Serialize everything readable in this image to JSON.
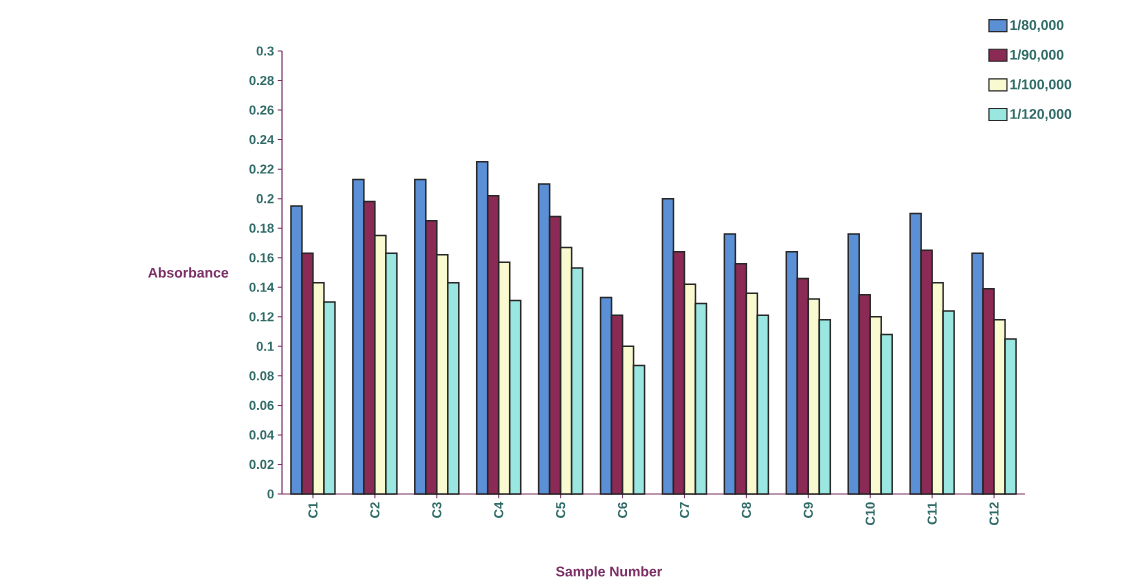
{
  "chart_data": {
    "type": "bar",
    "xlabel": "Sample Number",
    "ylabel": "Absorbance",
    "categories": [
      "C1",
      "C2",
      "C3",
      "C4",
      "C5",
      "C6",
      "C7",
      "C8",
      "C9",
      "C10",
      "C11",
      "C12"
    ],
    "series": [
      {
        "name": "1/80,000",
        "color": "#5b8fd6",
        "values": [
          0.195,
          0.213,
          0.213,
          0.225,
          0.21,
          0.133,
          0.2,
          0.176,
          0.164,
          0.176,
          0.19,
          0.163
        ]
      },
      {
        "name": "1/90,000",
        "color": "#8b2a55",
        "values": [
          0.163,
          0.198,
          0.185,
          0.202,
          0.188,
          0.121,
          0.164,
          0.156,
          0.146,
          0.135,
          0.165,
          0.139
        ]
      },
      {
        "name": "1/100,000",
        "color": "#fafad0",
        "values": [
          0.143,
          0.175,
          0.162,
          0.157,
          0.167,
          0.1,
          0.142,
          0.136,
          0.132,
          0.12,
          0.143,
          0.118
        ]
      },
      {
        "name": "1/120,000",
        "color": "#9ae6e0",
        "values": [
          0.13,
          0.163,
          0.143,
          0.131,
          0.153,
          0.087,
          0.129,
          0.121,
          0.118,
          0.108,
          0.124,
          0.105
        ]
      }
    ],
    "ylim": [
      0,
      0.3
    ],
    "yticks": [
      0,
      0.02,
      0.04,
      0.06,
      0.08,
      0.1,
      0.12,
      0.14,
      0.16,
      0.18,
      0.2,
      0.22,
      0.24,
      0.26,
      0.28,
      0.3
    ],
    "grid": false,
    "legend": "top right"
  }
}
